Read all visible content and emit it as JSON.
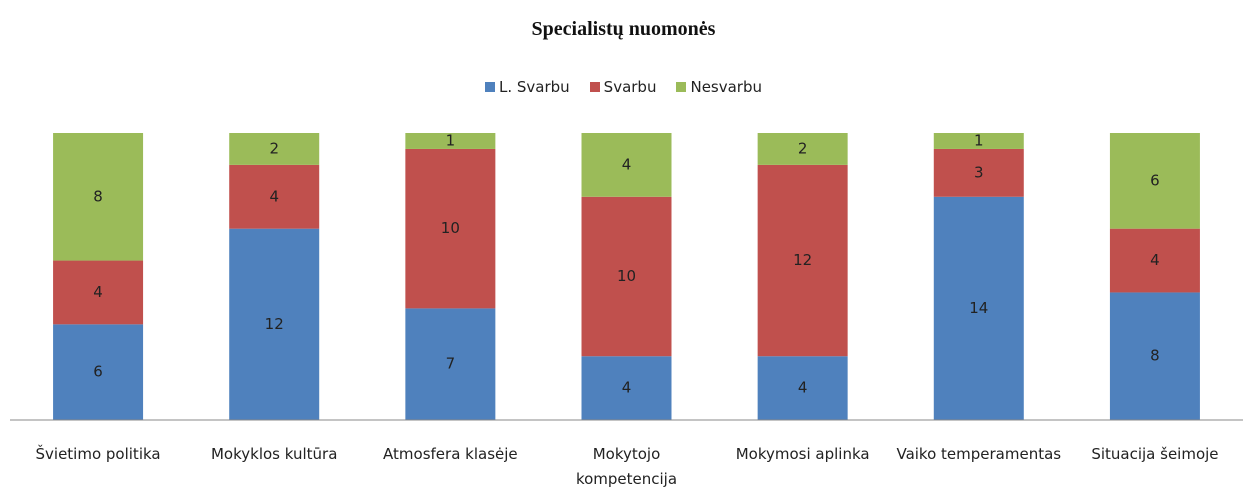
{
  "chart_data": {
    "type": "stacked_bar",
    "title": "Specialistų nuomonės",
    "categories": [
      "Švietimo politika",
      "Mokyklos kultūra",
      "Atmosfera klasėje",
      "Mokytojo kompetencija",
      "Mokymosi aplinka",
      "Vaiko temperamentas",
      "Situacija šeimoje"
    ],
    "series": [
      {
        "name": "L. Svarbu",
        "color": "#4f81bd",
        "values": [
          6,
          12,
          7,
          4,
          4,
          14,
          8
        ]
      },
      {
        "name": "Svarbu",
        "color": "#c0504d",
        "values": [
          4,
          4,
          10,
          10,
          12,
          3,
          4
        ]
      },
      {
        "name": "Nesvarbu",
        "color": "#9bbb59",
        "values": [
          8,
          2,
          1,
          4,
          2,
          1,
          6
        ]
      }
    ],
    "ylim": [
      0,
      18
    ],
    "legend": "top"
  }
}
